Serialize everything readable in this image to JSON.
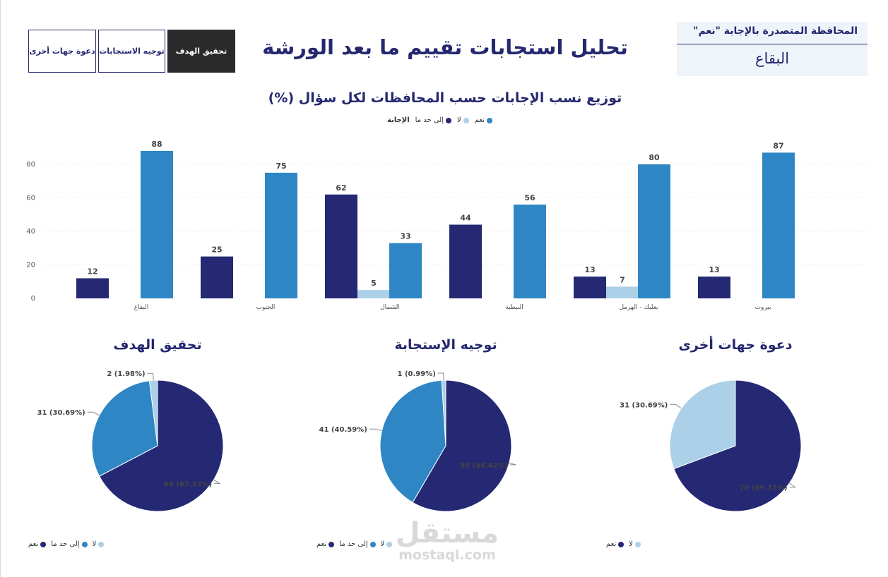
{
  "tabs": [
    {
      "label": "دعوة جهات أخرى",
      "active": false,
      "width": 96
    },
    {
      "label": "توجيه الاستجابات",
      "active": false,
      "width": 95
    },
    {
      "label": "تحقيق الهدف",
      "active": true,
      "width": 96
    }
  ],
  "header": {
    "title": "تحليل استجابات تقييم ما بعد الورشة"
  },
  "card": {
    "label": "المحافظة المتصدرة بالإجابة \"نعم\"",
    "value": "البقاع"
  },
  "colors": {
    "yes": "#2e87c4",
    "no": "#abd0e8",
    "partial": "#252873",
    "title": "#25286f"
  },
  "chart_data": [
    {
      "type": "bar",
      "title": "توزيع نسب الإجابات حسب المحافظات لكل سؤال (%)",
      "legend_title": "الإجابة",
      "categories": [
        "البقاع",
        "الجنوب",
        "الشمال",
        "النبطية",
        "بعلبك - الهرمل",
        "بيروت"
      ],
      "series": [
        {
          "name": "إلى حد ما",
          "color": "#252873",
          "values": [
            12,
            25,
            62,
            44,
            13,
            13
          ]
        },
        {
          "name": "لا",
          "color": "#abd0e8",
          "values": [
            null,
            null,
            5,
            null,
            7,
            null
          ]
        },
        {
          "name": "نعم",
          "color": "#2e87c4",
          "values": [
            88,
            75,
            33,
            56,
            80,
            87
          ]
        }
      ],
      "legend_order": [
        "نعم",
        "لا",
        "إلى حد ما"
      ],
      "y_ticks": [
        "0",
        "20",
        "40",
        "60",
        "80"
      ],
      "ylim": [
        0,
        95
      ],
      "grid": true,
      "legend_position": "top"
    },
    {
      "type": "pie",
      "title": "تحقيق الهدف",
      "slices": [
        {
          "name": "نعم",
          "value": 68,
          "label": "68 (67.33%)",
          "color": "#252873"
        },
        {
          "name": "إلى حد ما",
          "value": 31,
          "label": "31 (30.69%)",
          "color": "#2e87c4"
        },
        {
          "name": "لا",
          "value": 2,
          "label": "2 (1.98%)",
          "color": "#abd0e8"
        }
      ],
      "legend": [
        {
          "name": "لا",
          "color": "#abd0e8"
        },
        {
          "name": "إلى حد ما",
          "color": "#2e87c4"
        },
        {
          "name": "نعم",
          "color": "#252873"
        }
      ]
    },
    {
      "type": "pie",
      "title": "توجيه الإستجابة",
      "slices": [
        {
          "name": "نعم",
          "value": 59,
          "label": "59 (58.42%)",
          "color": "#252873"
        },
        {
          "name": "إلى حد ما",
          "value": 41,
          "label": "41 (40.59%)",
          "color": "#2e87c4"
        },
        {
          "name": "لا",
          "value": 1,
          "label": "1 (0.99%)",
          "color": "#abd0e8"
        }
      ],
      "legend": [
        {
          "name": "لا",
          "color": "#abd0e8"
        },
        {
          "name": "إلى حد ما",
          "color": "#2e87c4"
        },
        {
          "name": "نعم",
          "color": "#252873"
        }
      ]
    },
    {
      "type": "pie",
      "title": "دعوة جهات أخرى",
      "slices": [
        {
          "name": "نعم",
          "value": 70,
          "label": "70 (69.31%)",
          "color": "#252873"
        },
        {
          "name": "لا",
          "value": 31,
          "label": "31 (30.69%)",
          "color": "#abd0e8"
        }
      ],
      "legend": [
        {
          "name": "لا",
          "color": "#abd0e8"
        },
        {
          "name": "نعم",
          "color": "#252873"
        }
      ]
    }
  ],
  "watermark": {
    "arabic": "مستقل",
    "latin": "mostaql.com"
  }
}
